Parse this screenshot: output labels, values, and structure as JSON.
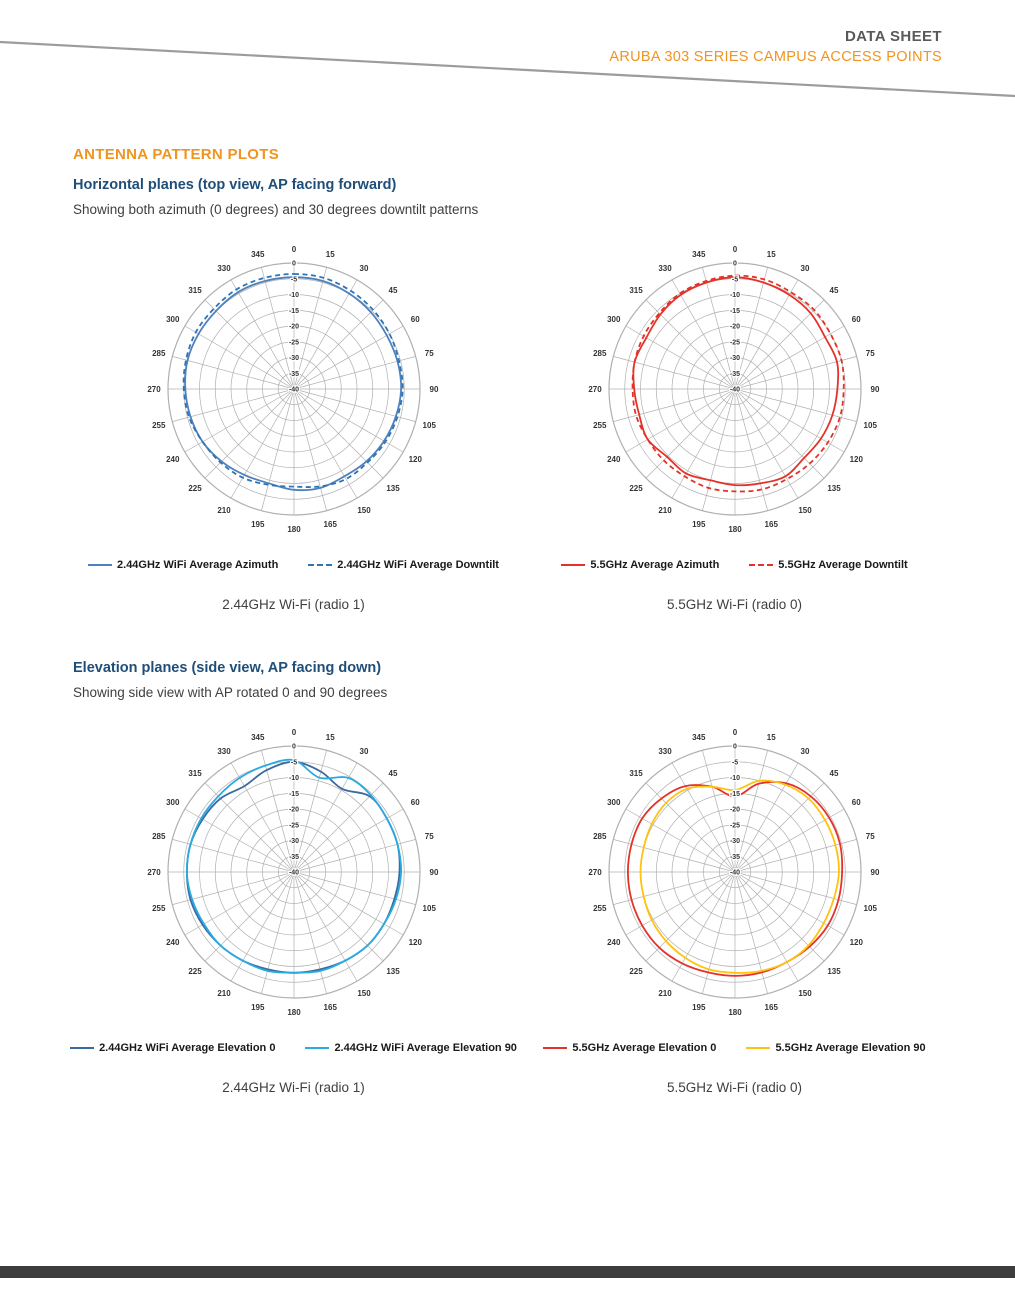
{
  "header": {
    "title": "DATA SHEET",
    "subtitle": "ARUBA 303 SERIES CAMPUS ACCESS POINTS"
  },
  "section_title": "ANTENNA PATTERN PLOTS",
  "subsections": [
    {
      "heading": "Horizontal planes (top view, AP facing forward)",
      "description": "Showing both azimuth (0 degrees) and 30 degrees downtilt patterns"
    },
    {
      "heading": "Elevation planes (side view, AP facing down)",
      "description": "Showing side view with AP rotated 0 and 90 degrees"
    }
  ],
  "colors": {
    "accent_orange": "#f0941f",
    "heading_blue": "#1f4e79",
    "body_text": "#3f3f3f",
    "grid": "#b0b0b0",
    "footer_bar": "#3d3d3d"
  },
  "chart_data": [
    {
      "type": "polar",
      "caption": "2.44GHz Wi-Fi (radio 1)",
      "angle_step_deg": 15,
      "angle_ticks_deg": [
        0,
        15,
        30,
        45,
        60,
        75,
        90,
        105,
        120,
        135,
        150,
        165,
        180,
        195,
        210,
        225,
        240,
        255,
        270,
        285,
        300,
        315,
        330,
        345
      ],
      "radial_axis": {
        "min": -40,
        "max": 0,
        "step": 5,
        "unit": "dB"
      },
      "series": [
        {
          "name": "2.44GHz WiFi Average Azimuth",
          "color": "#4f81bd",
          "dash": false,
          "values_db": [
            -4.5,
            -4.5,
            -5,
            -5.5,
            -6,
            -6,
            -6,
            -6.5,
            -7,
            -7.5,
            -8,
            -7.5,
            -8,
            -9,
            -8.5,
            -7.5,
            -6.5,
            -6,
            -5.5,
            -5,
            -5,
            -5,
            -4.5,
            -4.5
          ]
        },
        {
          "name": "2.44GHz WiFi Average Downtilt",
          "color": "#2e75b6",
          "dash": true,
          "values_db": [
            -3.5,
            -3.5,
            -4,
            -4.5,
            -5,
            -5.5,
            -5.5,
            -6,
            -6.5,
            -7,
            -7,
            -8,
            -9,
            -8.5,
            -7.5,
            -7,
            -6.5,
            -5.5,
            -5,
            -4.5,
            -4,
            -4,
            -3.5,
            -3.5
          ]
        }
      ]
    },
    {
      "type": "polar",
      "caption": "5.5GHz Wi-Fi (radio 0)",
      "angle_step_deg": 15,
      "angle_ticks_deg": [
        0,
        15,
        30,
        45,
        60,
        75,
        90,
        105,
        120,
        135,
        150,
        165,
        180,
        195,
        210,
        225,
        240,
        255,
        270,
        285,
        300,
        315,
        330,
        345
      ],
      "radial_axis": {
        "min": -40,
        "max": 0,
        "step": 5,
        "unit": "dB"
      },
      "series": [
        {
          "name": "5.5GHz Average Azimuth",
          "color": "#e53228",
          "dash": false,
          "values_db": [
            -4.5,
            -5,
            -5.5,
            -6,
            -7,
            -6.5,
            -7.5,
            -8,
            -8.5,
            -9,
            -8,
            -9,
            -9.5,
            -10,
            -9,
            -9.5,
            -8,
            -8.5,
            -8,
            -7,
            -7.5,
            -6.5,
            -5.5,
            -5
          ]
        },
        {
          "name": "5.5GHz Average Downtilt",
          "color": "#e53228",
          "dash": true,
          "values_db": [
            -4,
            -4,
            -4.5,
            -4.5,
            -5,
            -5,
            -5.5,
            -5.5,
            -6,
            -6.5,
            -7,
            -7,
            -7.5,
            -7.5,
            -8,
            -8,
            -8,
            -7.5,
            -7.5,
            -7,
            -6.5,
            -6,
            -5,
            -4.5
          ]
        }
      ]
    },
    {
      "type": "polar",
      "caption": "2.44GHz Wi-Fi (radio 1)",
      "angle_step_deg": 15,
      "angle_ticks_deg": [
        0,
        15,
        30,
        45,
        60,
        75,
        90,
        105,
        120,
        135,
        150,
        165,
        180,
        195,
        210,
        225,
        240,
        255,
        270,
        285,
        300,
        315,
        330,
        345
      ],
      "radial_axis": {
        "min": -40,
        "max": 0,
        "step": 5,
        "unit": "dB"
      },
      "series": [
        {
          "name": "2.44GHz WiFi Average Elevation 0",
          "color": "#3b6aa0",
          "dash": false,
          "values_db": [
            -5,
            -7,
            -9.5,
            -6,
            -6,
            -6,
            -6.5,
            -7,
            -7,
            -7,
            -7.5,
            -8,
            -8,
            -8,
            -7.5,
            -7,
            -6.5,
            -6,
            -6,
            -6,
            -6.5,
            -7,
            -8.5,
            -6.5
          ]
        },
        {
          "name": "2.44GHz WiFi Average Elevation 90",
          "color": "#29abe2",
          "dash": false,
          "values_db": [
            -4.5,
            -9,
            -5.5,
            -5.5,
            -6,
            -6,
            -6,
            -6.5,
            -7,
            -7,
            -7.5,
            -7.5,
            -8,
            -7.5,
            -7.5,
            -7,
            -7,
            -6.5,
            -6,
            -6,
            -6,
            -6,
            -5.5,
            -5
          ]
        }
      ]
    },
    {
      "type": "polar",
      "caption": "5.5GHz Wi-Fi (radio 0)",
      "angle_step_deg": 15,
      "angle_ticks_deg": [
        0,
        15,
        30,
        45,
        60,
        75,
        90,
        105,
        120,
        135,
        150,
        165,
        180,
        195,
        210,
        225,
        240,
        255,
        270,
        285,
        300,
        315,
        330,
        345
      ],
      "radial_axis": {
        "min": -40,
        "max": 0,
        "step": 5,
        "unit": "dB"
      },
      "series": [
        {
          "name": "5.5GHz Average Elevation 0",
          "color": "#e53228",
          "dash": false,
          "values_db": [
            -16,
            -11,
            -7.5,
            -6,
            -5.5,
            -5.5,
            -6,
            -6,
            -6,
            -6.5,
            -7,
            -7,
            -7,
            -7,
            -6.5,
            -6,
            -6,
            -6,
            -6,
            -6,
            -6,
            -7,
            -8.5,
            -12
          ]
        },
        {
          "name": "5.5GHz Average Elevation 90",
          "color": "#ffc20e",
          "dash": false,
          "values_db": [
            -14,
            -10,
            -8,
            -7,
            -7,
            -7,
            -7,
            -7.5,
            -7.5,
            -7,
            -7,
            -7.5,
            -8,
            -8,
            -8.5,
            -9,
            -9.5,
            -10,
            -10,
            -10,
            -9.5,
            -9,
            -9.5,
            -12
          ]
        }
      ]
    }
  ]
}
